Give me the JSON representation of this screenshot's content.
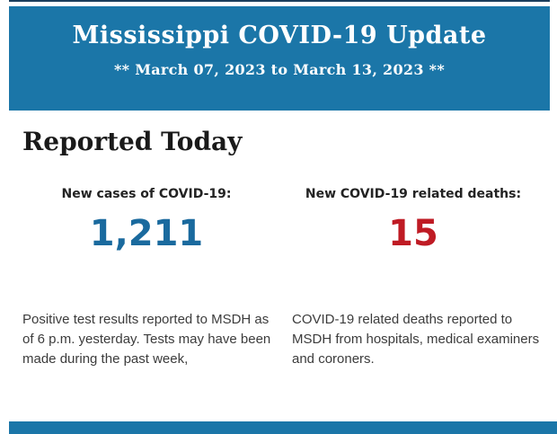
{
  "header": {
    "title": "Mississippi COVID-19 Update",
    "subtitle": "** March 07, 2023 to March 13, 2023 **",
    "background_color": "#1b76a8",
    "text_color": "#ffffff",
    "top_border_color": "#1b3e5c"
  },
  "section": {
    "title": "Reported Today"
  },
  "stats": [
    {
      "label": "New cases of COVID-19:",
      "value": "1,211",
      "value_color": "#1a6a9e",
      "description": "Positive test results reported to MSDH as of 6 p.m. yesterday. Tests may have been made during the past week,"
    },
    {
      "label": "New COVID-19 related deaths:",
      "value": "15",
      "value_color": "#bf1b24",
      "description": "COVID-19 related deaths reported to MSDH from hospitals, medical examiners and coroners."
    }
  ],
  "footer": {
    "bar_color": "#1b76a8"
  }
}
